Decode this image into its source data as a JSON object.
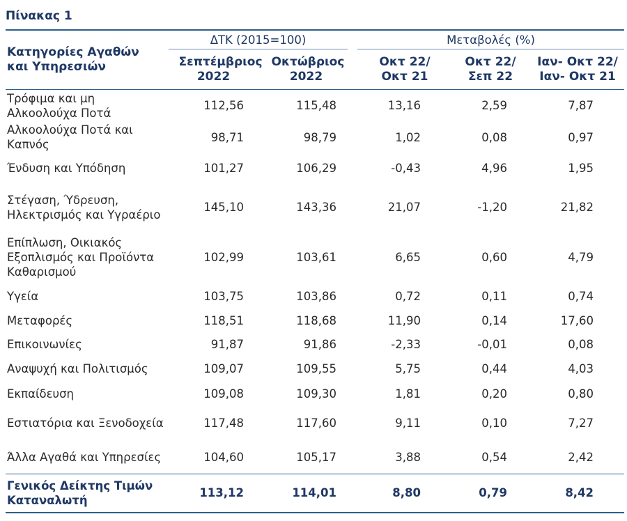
{
  "title": "Πίνακας 1",
  "header": {
    "category_label": "Κατηγορίες Αγαθών και Υπηρεσιών",
    "group_index": "ΔΤΚ (2015=100)",
    "group_changes": "Μεταβολές (%)",
    "col1": "Σεπτέμβριος 2022",
    "col2": "Οκτώβριος 2022",
    "col3": "Οκτ 22/ Οκτ 21",
    "col4": "Οκτ 22/ Σεπ 22",
    "col5": "Ιαν- Οκτ 22/ Ιαν- Οκτ 21"
  },
  "rows": [
    {
      "category": "Τρόφιμα και μη Αλκοολούχα Ποτά",
      "v1": "112,56",
      "v2": "115,48",
      "v3": "13,16",
      "v4": "2,59",
      "v5": "7,87"
    },
    {
      "category": "Αλκοολούχα Ποτά και Καπνός",
      "v1": "98,71",
      "v2": "98,79",
      "v3": "1,02",
      "v4": "0,08",
      "v5": "0,97"
    },
    {
      "category": "Ένδυση και Υπόδηση",
      "v1": "101,27",
      "v2": "106,29",
      "v3": "-0,43",
      "v4": "4,96",
      "v5": "1,95"
    },
    {
      "category": "Στέγαση, Ύδρευση, Ηλεκτρισμός και Υγραέριο",
      "v1": "145,10",
      "v2": "143,36",
      "v3": "21,07",
      "v4": "-1,20",
      "v5": "21,82"
    },
    {
      "category": "Επίπλωση, Οικιακός Εξοπλισμός και Προϊόντα Καθαρισμού",
      "v1": "102,99",
      "v2": "103,61",
      "v3": "6,65",
      "v4": "0,60",
      "v5": "4,79"
    },
    {
      "category": "Υγεία",
      "v1": "103,75",
      "v2": "103,86",
      "v3": "0,72",
      "v4": "0,11",
      "v5": "0,74"
    },
    {
      "category": "Μεταφορές",
      "v1": "118,51",
      "v2": "118,68",
      "v3": "11,90",
      "v4": "0,14",
      "v5": "17,60"
    },
    {
      "category": "Επικοινωνίες",
      "v1": "91,87",
      "v2": "91,86",
      "v3": "-2,33",
      "v4": "-0,01",
      "v5": "0,08"
    },
    {
      "category": "Αναψυχή και Πολιτισμός",
      "v1": "109,07",
      "v2": "109,55",
      "v3": "5,75",
      "v4": "0,44",
      "v5": "4,03"
    },
    {
      "category": "Εκπαίδευση",
      "v1": "109,08",
      "v2": "109,30",
      "v3": "1,81",
      "v4": "0,20",
      "v5": "0,80"
    },
    {
      "category": "Εστιατόρια και Ξενοδοχεία",
      "v1": "117,48",
      "v2": "117,60",
      "v3": "9,11",
      "v4": "0,10",
      "v5": "7,27"
    },
    {
      "category": "Άλλα Αγαθά και Υπηρεσίες",
      "v1": "104,60",
      "v2": "105,17",
      "v3": "3,88",
      "v4": "0,54",
      "v5": "2,42"
    }
  ],
  "total": {
    "category": "Γενικός Δείκτης Τιμών Καταναλωτή",
    "v1": "113,12",
    "v2": "114,01",
    "v3": "8,80",
    "v4": "0,79",
    "v5": "8,42"
  }
}
